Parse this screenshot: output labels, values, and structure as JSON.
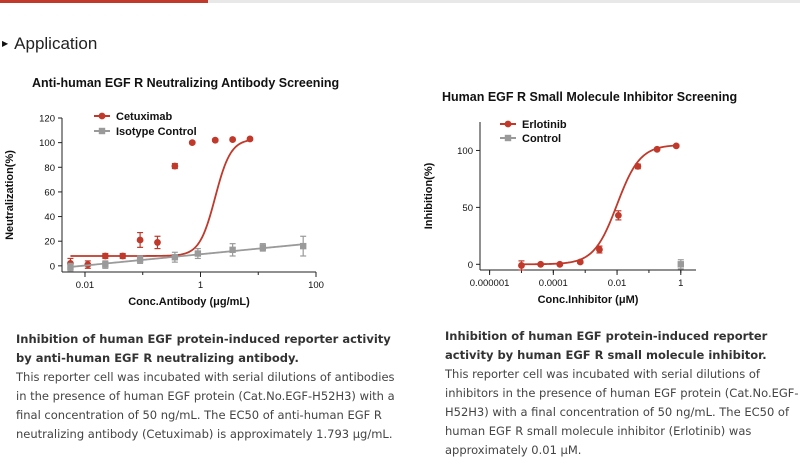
{
  "section": {
    "title": "Application"
  },
  "charts": [
    {
      "title": "Anti-human EGF R Neutralizing Antibody Screening",
      "caption_title": "Inhibition of human EGF protein-induced reporter activity by anti-human EGF R neutralizing antibody.",
      "caption_body": "This reporter cell was incubated with serial dilutions of antibodies in the presence of human EGF protein (Cat.No.EGF-H52H3) with a final concentration of 50 ng/mL. The EC50 of anti-human EGF R neutralizing antibody (Cetuximab) is approximately 1.793 μg/mL."
    },
    {
      "title": "Human EGF R Small Molecule Inhibitor Screening",
      "caption_title": "Inhibition of human EGF protein-induced reporter activity by human EGF R small molecule inhibitor.",
      "caption_body": "This reporter cell was incubated with serial dilutions of inhibitors in the presence of human EGF protein (Cat.No.EGF-H52H3) with a final concentration of 50 ng/mL. The EC50 of human EGF R small molecule inhibitor (Erlotinib) was approximately 0.01 μM."
    }
  ],
  "chart_data": [
    {
      "type": "scatter",
      "title": "Anti-human EGF R Neutralizing Antibody Screening",
      "xlabel": "Conc.Antibody (μg/mL)",
      "ylabel": "Neutralization(%)",
      "xscale": "log",
      "xlim": [
        0.004,
        100
      ],
      "ylim": [
        -5,
        120
      ],
      "xticks": [
        0.01,
        1,
        100
      ],
      "xtick_labels": [
        "0.01",
        "1",
        "100"
      ],
      "yticks": [
        0,
        20,
        40,
        60,
        80,
        100,
        120
      ],
      "ytick_labels": [
        "0",
        "20",
        "40",
        "60",
        "80",
        "100",
        "120"
      ],
      "legend": "top-left",
      "series": [
        {
          "name": "Cetuximab",
          "color": "#c0392b",
          "marker": "circle",
          "x": [
            0.0056,
            0.0112,
            0.0225,
            0.045,
            0.09,
            0.18,
            0.36,
            0.72,
            1.8,
            3.6,
            7.2
          ],
          "y": [
            2,
            1,
            8,
            8,
            21,
            19,
            81,
            100,
            102,
            102.5,
            103
          ],
          "err": [
            4,
            3,
            2,
            2,
            6,
            5,
            2,
            1,
            1,
            1,
            1
          ],
          "fit": {
            "bottom": 8,
            "top": 103,
            "ec50": 1.793,
            "hill": 3.2
          }
        },
        {
          "name": "Isotype Control",
          "color": "#9a9a9a",
          "marker": "square",
          "x": [
            0.0056,
            0.0225,
            0.09,
            0.36,
            0.9,
            3.6,
            12,
            60
          ],
          "y": [
            -1,
            1,
            5,
            7,
            10,
            13,
            15,
            16
          ],
          "err": [
            3,
            3,
            3,
            4,
            4,
            5,
            3,
            8
          ],
          "fit": {
            "type": "linear-log"
          }
        }
      ]
    },
    {
      "type": "scatter",
      "title": "Human EGF R Small Molecule Inhibitor Screening",
      "xlabel": "Conc.Inhibitor (μM)",
      "ylabel": "Inhibition(%)",
      "xscale": "log",
      "xlim": [
        5e-07,
        3
      ],
      "ylim": [
        -5,
        125
      ],
      "xticks": [
        1e-06,
        0.0001,
        0.01,
        1
      ],
      "xtick_labels": [
        "0.000001",
        "0.0001",
        "0.01",
        "1"
      ],
      "yticks": [
        0,
        50,
        100
      ],
      "ytick_labels": [
        "0",
        "50",
        "100"
      ],
      "legend": "top-left",
      "series": [
        {
          "name": "Erlotinib",
          "color": "#c0392b",
          "marker": "circle",
          "x": [
            1e-05,
            4e-05,
            0.00016,
            0.0007,
            0.0028,
            0.011,
            0.045,
            0.18,
            0.72
          ],
          "y": [
            -1,
            0,
            0,
            2,
            13,
            43,
            86,
            101,
            104
          ],
          "err": [
            4,
            1,
            1,
            1,
            3,
            4,
            2,
            1,
            1
          ],
          "fit": {
            "bottom": 0,
            "top": 105,
            "ec50": 0.01,
            "hill": 1.2
          }
        },
        {
          "name": "Control",
          "color": "#9a9a9a",
          "marker": "square",
          "x": [
            1
          ],
          "y": [
            0
          ],
          "err": [
            4
          ]
        }
      ]
    }
  ]
}
